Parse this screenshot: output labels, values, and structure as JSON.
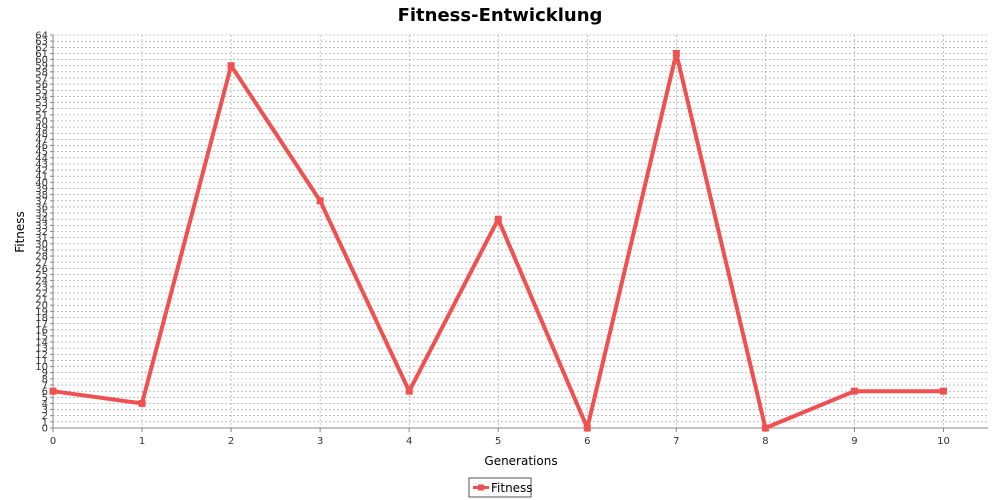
{
  "chart_data": {
    "type": "line",
    "title": "Fitness-Entwicklung",
    "xlabel": "Generations",
    "ylabel": "Fitness",
    "xlim": [
      0,
      10.5
    ],
    "ylim": [
      0,
      64
    ],
    "x_ticks": [
      0,
      1,
      2,
      3,
      4,
      5,
      6,
      7,
      8,
      9,
      10
    ],
    "y_ticks": [
      0,
      1,
      2,
      3,
      4,
      5,
      6,
      7,
      8,
      9,
      10,
      11,
      12,
      13,
      14,
      15,
      16,
      17,
      18,
      19,
      20,
      21,
      22,
      23,
      24,
      25,
      26,
      27,
      28,
      29,
      30,
      31,
      32,
      33,
      34,
      35,
      36,
      37,
      38,
      39,
      40,
      41,
      42,
      43,
      44,
      45,
      46,
      47,
      48,
      49,
      50,
      51,
      52,
      53,
      54,
      55,
      56,
      57,
      58,
      59,
      60,
      61,
      62,
      63,
      64
    ],
    "grid": true,
    "legend_position": "bottom-center",
    "series": [
      {
        "name": "Fitness",
        "color": "#f05050",
        "x": [
          0,
          1,
          2,
          3,
          4,
          5,
          6,
          7,
          8,
          9,
          10
        ],
        "values": [
          6,
          4,
          59,
          37,
          6,
          34,
          0,
          61,
          0,
          6,
          6
        ]
      }
    ]
  }
}
